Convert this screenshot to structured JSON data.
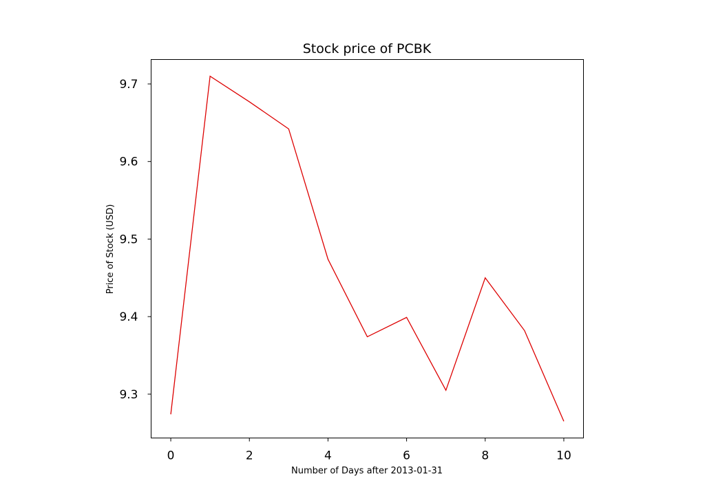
{
  "chart_data": {
    "type": "line",
    "title": "Stock price of PCBK",
    "xlabel": "Number of Days after 2013-01-31",
    "ylabel": "Price of Stock (USD)",
    "x": [
      0,
      1,
      2,
      3,
      4,
      5,
      6,
      7,
      8,
      9,
      10
    ],
    "series": [
      {
        "values": [
          9.274,
          9.71,
          9.677,
          9.642,
          9.474,
          9.374,
          9.399,
          9.305,
          9.45,
          9.382,
          9.265
        ],
        "color": "#dd0000"
      }
    ],
    "xlim": [
      -0.5,
      10.5
    ],
    "ylim": [
      9.2435,
      9.7315
    ],
    "xticks": [
      0,
      2,
      4,
      6,
      8,
      10
    ],
    "yticks": [
      9.3,
      9.4,
      9.5,
      9.6,
      9.7
    ],
    "xtick_labels": [
      "0",
      "2",
      "4",
      "6",
      "8",
      "10"
    ],
    "ytick_labels": [
      "9.3",
      "9.4",
      "9.5",
      "9.6",
      "9.7"
    ],
    "grid": false,
    "legend": false
  }
}
